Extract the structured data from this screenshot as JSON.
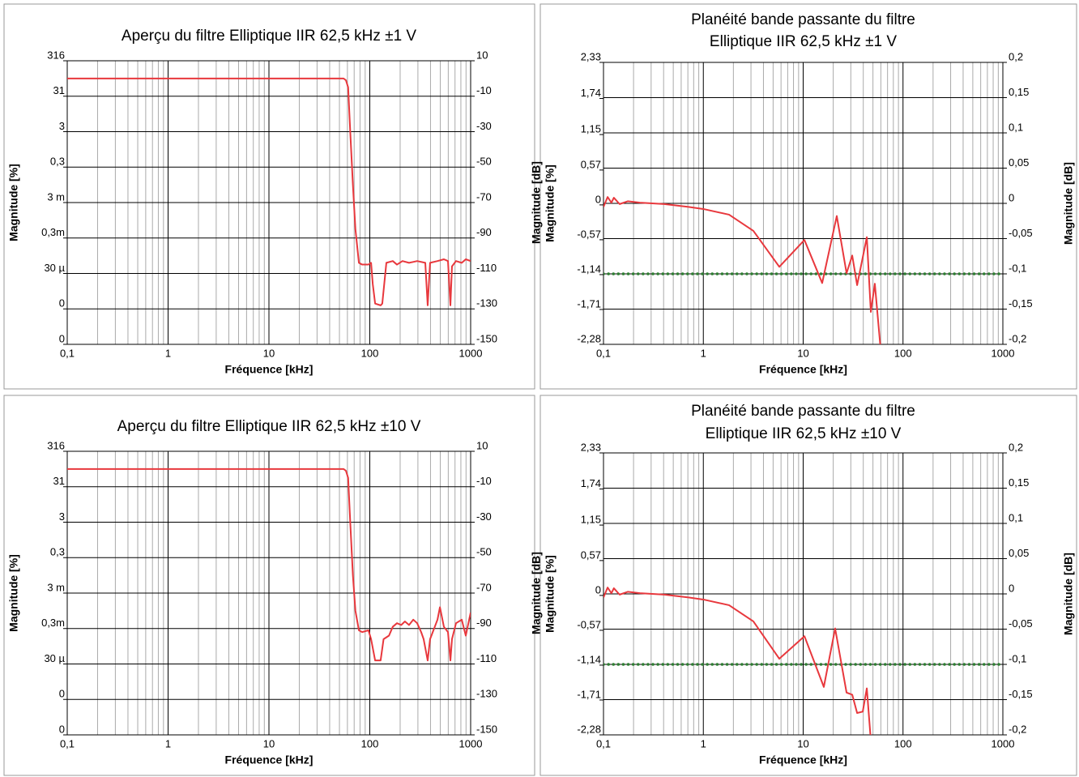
{
  "chart_data": [
    {
      "type": "line",
      "title": "Aperçu du filtre Elliptique IIR 62,5 kHz ±1 V",
      "xlabel": "Fréquence [kHz]",
      "ylabel": "Magnitude [%]",
      "y2label": "Magnitude [dB]",
      "xlog": true,
      "xlim": [
        0.1,
        1000
      ],
      "xticks": [
        {
          "value": 0.1,
          "label": "0,1"
        },
        1,
        10,
        100,
        1000
      ],
      "ylog": true,
      "ylim": [
        3.162e-06,
        316.2
      ],
      "yticks": [
        {
          "value": 316.2,
          "label": "316"
        },
        {
          "value": 31.62,
          "label": "31"
        },
        {
          "value": 3.162,
          "label": "3"
        },
        {
          "value": 0.3162,
          "label": "0,3"
        },
        {
          "value": 0.03162,
          "label": "3 m"
        },
        {
          "value": 0.003162,
          "label": "0,3m"
        },
        {
          "value": 0.0003162,
          "label": "30 µ"
        },
        {
          "value": 3.162e-05,
          "label": "0"
        },
        {
          "value": 3.162e-06,
          "label": "0"
        }
      ],
      "y2lim": [
        -150,
        10
      ],
      "y2ticks": [
        10,
        -10,
        -30,
        -50,
        -70,
        -90,
        -110,
        -130,
        -150
      ],
      "grid": true,
      "minor_grid": true,
      "series": [
        {
          "color": "#e8383d",
          "axis": "y2",
          "x": [
            0.1,
            1,
            10,
            40,
            55,
            58,
            61,
            64,
            68,
            72,
            78,
            84,
            97,
            103,
            107,
            113,
            128,
            133,
            146,
            169,
            186,
            211,
            245,
            295,
            355,
            375,
            396,
            469,
            543,
            596,
            630,
            653,
            716,
            816,
            895,
            1000
          ],
          "values": [
            0,
            0,
            0,
            0,
            0,
            -1,
            -5,
            -30,
            -60,
            -85,
            -104,
            -105,
            -105,
            -104,
            -116,
            -127,
            -128,
            -127,
            -104,
            -103,
            -105,
            -103,
            -104,
            -103,
            -104,
            -128,
            -104,
            -103,
            -102,
            -103,
            -128,
            -106,
            -103,
            -104,
            -102,
            -103
          ]
        }
      ]
    },
    {
      "type": "line",
      "title": [
        "Planéité bande passante du filtre",
        "Elliptique IIR 62,5 kHz ±1 V"
      ],
      "xlabel": "Fréquence [kHz]",
      "ylabel": "Magnitude [%]",
      "y2label": "Magnitude [dB]",
      "xlog": true,
      "xlim": [
        0.1,
        1000
      ],
      "xticks": [
        {
          "value": 0.1,
          "label": "0,1"
        },
        1,
        10,
        100,
        1000
      ],
      "ylog": false,
      "ylim": [
        -2.28,
        2.33
      ],
      "yticks": [
        {
          "value": 2.33,
          "label": "2,33"
        },
        {
          "value": 1.74,
          "label": "1,74"
        },
        {
          "value": 1.15,
          "label": "1,15"
        },
        {
          "value": 0.57,
          "label": "0,57"
        },
        0,
        {
          "value": -0.57,
          "label": "-0,57"
        },
        {
          "value": -1.14,
          "label": "-1,14"
        },
        {
          "value": -1.71,
          "label": "-1,71"
        },
        {
          "value": -2.28,
          "label": "-2,28"
        }
      ],
      "y2lim": [
        -0.2,
        0.2
      ],
      "y2ticks": [
        {
          "value": 0.2,
          "label": "0,2"
        },
        {
          "value": 0.15,
          "label": "0,15"
        },
        {
          "value": 0.1,
          "label": "0,1"
        },
        {
          "value": 0.05,
          "label": "0,05"
        },
        0,
        {
          "value": -0.05,
          "label": "-0,05"
        },
        {
          "value": -0.1,
          "label": "-0,1"
        },
        {
          "value": -0.15,
          "label": "-0,15"
        },
        {
          "value": -0.2,
          "label": "-0,2"
        }
      ],
      "grid": true,
      "minor_grid": true,
      "series": [
        {
          "color": "#2e7d32",
          "axis": "y2",
          "style": "dotted",
          "x": [
            0.1,
            1000
          ],
          "values": [
            -0.1,
            -0.1
          ]
        },
        {
          "color": "#e8383d",
          "axis": "y2",
          "x": [
            0.1,
            0.11,
            0.12,
            0.127,
            0.145,
            0.175,
            0.232,
            0.406,
            0.711,
            1,
            1.81,
            3.17,
            5.77,
            10.3,
            15.5,
            21.7,
            27.2,
            31,
            34.7,
            43.4,
            47.6,
            52.2,
            59.6
          ],
          "values": [
            -0.005,
            0.009,
            0.001,
            0.008,
            -0.001,
            0.003,
            0.001,
            -0.001,
            -0.005,
            -0.008,
            -0.016,
            -0.039,
            -0.09,
            -0.052,
            -0.113,
            -0.018,
            -0.099,
            -0.074,
            -0.116,
            -0.048,
            -0.154,
            -0.114,
            -0.206
          ]
        }
      ]
    },
    {
      "type": "line",
      "title": "Aperçu du filtre Elliptique IIR 62,5 kHz ±10 V",
      "xlabel": "Fréquence [kHz]",
      "ylabel": "Magnitude [%]",
      "y2label": "Magnitude [dB]",
      "xlog": true,
      "xlim": [
        0.1,
        1000
      ],
      "xticks": [
        {
          "value": 0.1,
          "label": "0,1"
        },
        1,
        10,
        100,
        1000
      ],
      "ylog": true,
      "ylim": [
        3.162e-06,
        316.2
      ],
      "yticks": [
        {
          "value": 316.2,
          "label": "316"
        },
        {
          "value": 31.62,
          "label": "31"
        },
        {
          "value": 3.162,
          "label": "3"
        },
        {
          "value": 0.3162,
          "label": "0,3"
        },
        {
          "value": 0.03162,
          "label": "3 m"
        },
        {
          "value": 0.003162,
          "label": "0,3m"
        },
        {
          "value": 0.0003162,
          "label": "30 µ"
        },
        {
          "value": 3.162e-05,
          "label": "0"
        },
        {
          "value": 3.162e-06,
          "label": "0"
        }
      ],
      "y2lim": [
        -150,
        10
      ],
      "y2ticks": [
        10,
        -10,
        -30,
        -50,
        -70,
        -90,
        -110,
        -130,
        -150
      ],
      "grid": true,
      "minor_grid": true,
      "series": [
        {
          "color": "#e8383d",
          "axis": "y2",
          "x": [
            0.1,
            1,
            10,
            40,
            55,
            58,
            61,
            64,
            68,
            72,
            78,
            84,
            97,
            103,
            113,
            128,
            137,
            155,
            169,
            186,
            205,
            223,
            245,
            270,
            295,
            323,
            342,
            375,
            396,
            469,
            496,
            543,
            596,
            630,
            653,
            716,
            816,
            895,
            1000
          ],
          "values": [
            0,
            0,
            0,
            0,
            0,
            -1,
            -5,
            -30,
            -60,
            -80,
            -91,
            -92,
            -91,
            -96,
            -108,
            -108,
            -96,
            -94,
            -89,
            -87,
            -88,
            -86,
            -88,
            -85,
            -87,
            -92,
            -96,
            -108,
            -96,
            -85,
            -78,
            -89,
            -92,
            -108,
            -96,
            -87,
            -85,
            -94,
            -81
          ]
        }
      ]
    },
    {
      "type": "line",
      "title": [
        "Planéité bande passante du filtre",
        "Elliptique IIR 62,5 kHz ±10 V"
      ],
      "xlabel": "Fréquence [kHz]",
      "ylabel": "Magnitude [%]",
      "y2label": "Magnitude [dB]",
      "xlog": true,
      "xlim": [
        0.1,
        1000
      ],
      "xticks": [
        {
          "value": 0.1,
          "label": "0,1"
        },
        1,
        10,
        100,
        1000
      ],
      "ylog": false,
      "ylim": [
        -2.28,
        2.33
      ],
      "yticks": [
        {
          "value": 2.33,
          "label": "2,33"
        },
        {
          "value": 1.74,
          "label": "1,74"
        },
        {
          "value": 1.15,
          "label": "1,15"
        },
        {
          "value": 0.57,
          "label": "0,57"
        },
        0,
        {
          "value": -0.57,
          "label": "-0,57"
        },
        {
          "value": -1.14,
          "label": "-1,14"
        },
        {
          "value": -1.71,
          "label": "-1,71"
        },
        {
          "value": -2.28,
          "label": "-2,28"
        }
      ],
      "y2lim": [
        -0.2,
        0.2
      ],
      "y2ticks": [
        {
          "value": 0.2,
          "label": "0,2"
        },
        {
          "value": 0.15,
          "label": "0,15"
        },
        {
          "value": 0.1,
          "label": "0,1"
        },
        {
          "value": 0.05,
          "label": "0,05"
        },
        0,
        {
          "value": -0.05,
          "label": "-0,05"
        },
        {
          "value": -0.1,
          "label": "-0,1"
        },
        {
          "value": -0.15,
          "label": "-0,15"
        },
        {
          "value": -0.2,
          "label": "-0,2"
        }
      ],
      "grid": true,
      "minor_grid": true,
      "series": [
        {
          "color": "#2e7d32",
          "axis": "y2",
          "style": "dotted",
          "x": [
            0.1,
            1000
          ],
          "values": [
            -0.1,
            -0.1
          ]
        },
        {
          "color": "#e8383d",
          "axis": "y2",
          "x": [
            0.1,
            0.11,
            0.12,
            0.127,
            0.145,
            0.175,
            0.232,
            0.406,
            0.711,
            1,
            1.81,
            3.17,
            5.77,
            10.3,
            16.1,
            20.9,
            27.2,
            31,
            34.7,
            39.5,
            43.4,
            47.6
          ],
          "values": [
            -0.005,
            0.009,
            0.001,
            0.008,
            -0.001,
            0.003,
            0.001,
            -0.001,
            -0.005,
            -0.008,
            -0.016,
            -0.039,
            -0.092,
            -0.06,
            -0.132,
            -0.049,
            -0.14,
            -0.143,
            -0.169,
            -0.167,
            -0.134,
            -0.208
          ]
        }
      ]
    }
  ]
}
